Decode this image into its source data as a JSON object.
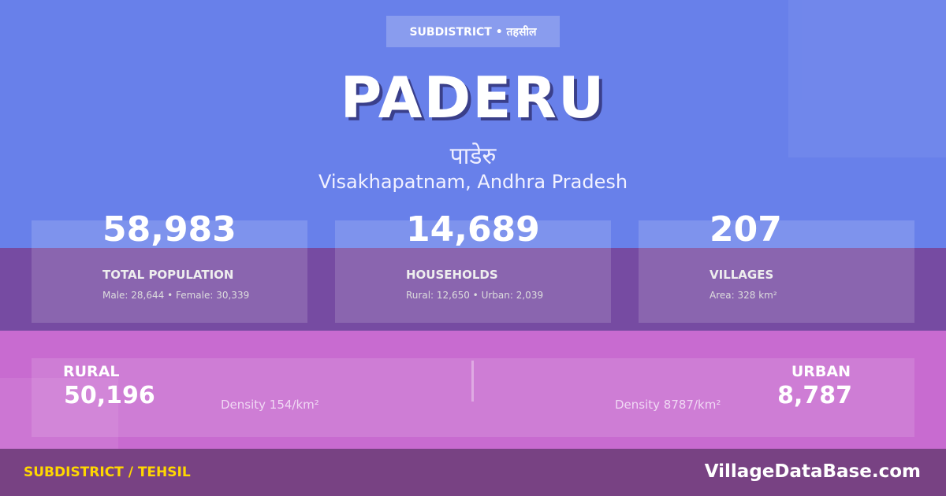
{
  "badge": "SUBDISTRICT • तहसील",
  "title": "PADERU",
  "title_hindi": "पाडेरु",
  "location": "Visakhapatnam, Andhra Pradesh",
  "stats": [
    {
      "value": "58,983",
      "label": "TOTAL POPULATION",
      "sub": "Male: 28,644 • Female: 30,339"
    },
    {
      "value": "14,689",
      "label": "HOUSEHOLDS",
      "sub": "Rural: 12,650 • Urban: 2,039"
    },
    {
      "value": "207",
      "label": "VILLAGES",
      "sub": "Area: 328 km²"
    }
  ],
  "rural": {
    "label": "RURAL",
    "value": "50,196",
    "density": "Density 154/km²"
  },
  "urban": {
    "label": "URBAN",
    "value": "8,787",
    "density": "Density 8787/km²"
  },
  "footer": {
    "label": "SUBDISTRICT / TEHSIL",
    "brand": "VillageDataBase.com"
  },
  "colors": {
    "top": "#6880ea",
    "band": "#764ba2",
    "pink": "#c86bd0",
    "footer": "#784283",
    "accent": "#ffd700"
  }
}
